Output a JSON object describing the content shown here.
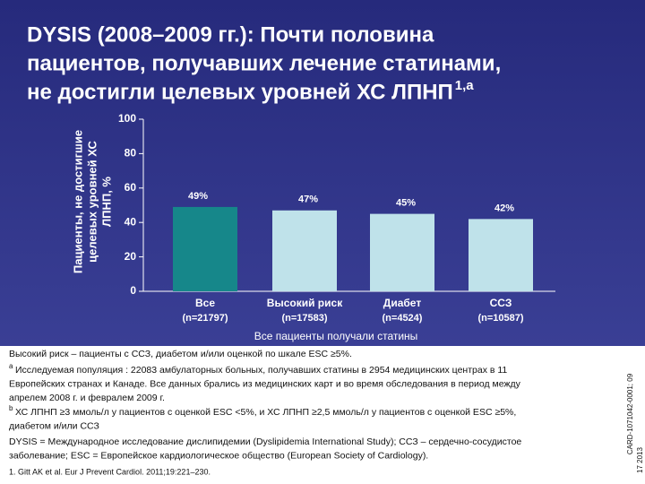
{
  "chart_data": {
    "type": "bar",
    "title_lines": [
      "DYSIS (2008–2009 гг.): Почти половина",
      "пациентов, получавших лечение статинами,",
      "не достигли целевых уровней ХС ЛПНП"
    ],
    "title_sup": "1,a",
    "y_label_lines": [
      "Пациенты, не достигшие",
      "целевых уровней ХС",
      "ЛПНП, %"
    ],
    "x_label": "Все пациенты получали статины",
    "categories": [
      "Все",
      "Высокий риск",
      "Диабет",
      "ССЗ"
    ],
    "category_notes": [
      "(n=21797)",
      "(n=17583)",
      "(n=4524)",
      "(n=10587)"
    ],
    "values": [
      49,
      47,
      45,
      42
    ],
    "value_labels": [
      "49%",
      "47%",
      "45%",
      "42%"
    ],
    "colors": [
      "#16878a",
      "#bfe2ea",
      "#bfe2ea",
      "#bfe2ea"
    ],
    "ylim": [
      0,
      100
    ],
    "yticks": [
      0,
      20,
      40,
      60,
      80,
      100
    ]
  },
  "footnotes": [
    {
      "marker": "",
      "lines": [
        "Высокий риск – пациенты с ССЗ, диабетом и/или оценкой по шкале ESC ≥5%."
      ]
    },
    {
      "marker": "a",
      "lines": [
        "Исследуемая популяция : 22083 амбулаторных больных, получавших статины в 2954 медицинских центрах в 11",
        "Европейских странах и Канаде. Все данных брались из медицинских карт и во время обследования в период между",
        "апрелем 2008 г. и февралем 2009 г."
      ]
    },
    {
      "marker": "b",
      "lines": [
        "ХС ЛПНП ≥3 ммоль/л у пациентов с оценкой ESC <5%, и ХС ЛПНП ≥2,5 ммоль/л у пациентов с оценкой ESC ≥5%,",
        "диабетом и/или ССЗ"
      ]
    },
    {
      "marker": "",
      "lines": [
        "DYSIS = Международное исследование дислипидемии (Dyslipidemia International Study); ССЗ – сердечно-сосудистое",
        "заболевание; ESC = Европейское кардиологическое общество (European Society of Cardiology)."
      ]
    },
    {
      "marker": "",
      "lines": [
        "1. Gitt AK et al. Eur J Prevent Cardiol. 2011;19:221–230."
      ]
    }
  ],
  "side_code": [
    "CARD-1071042-0001; 09",
    "17 2013"
  ]
}
